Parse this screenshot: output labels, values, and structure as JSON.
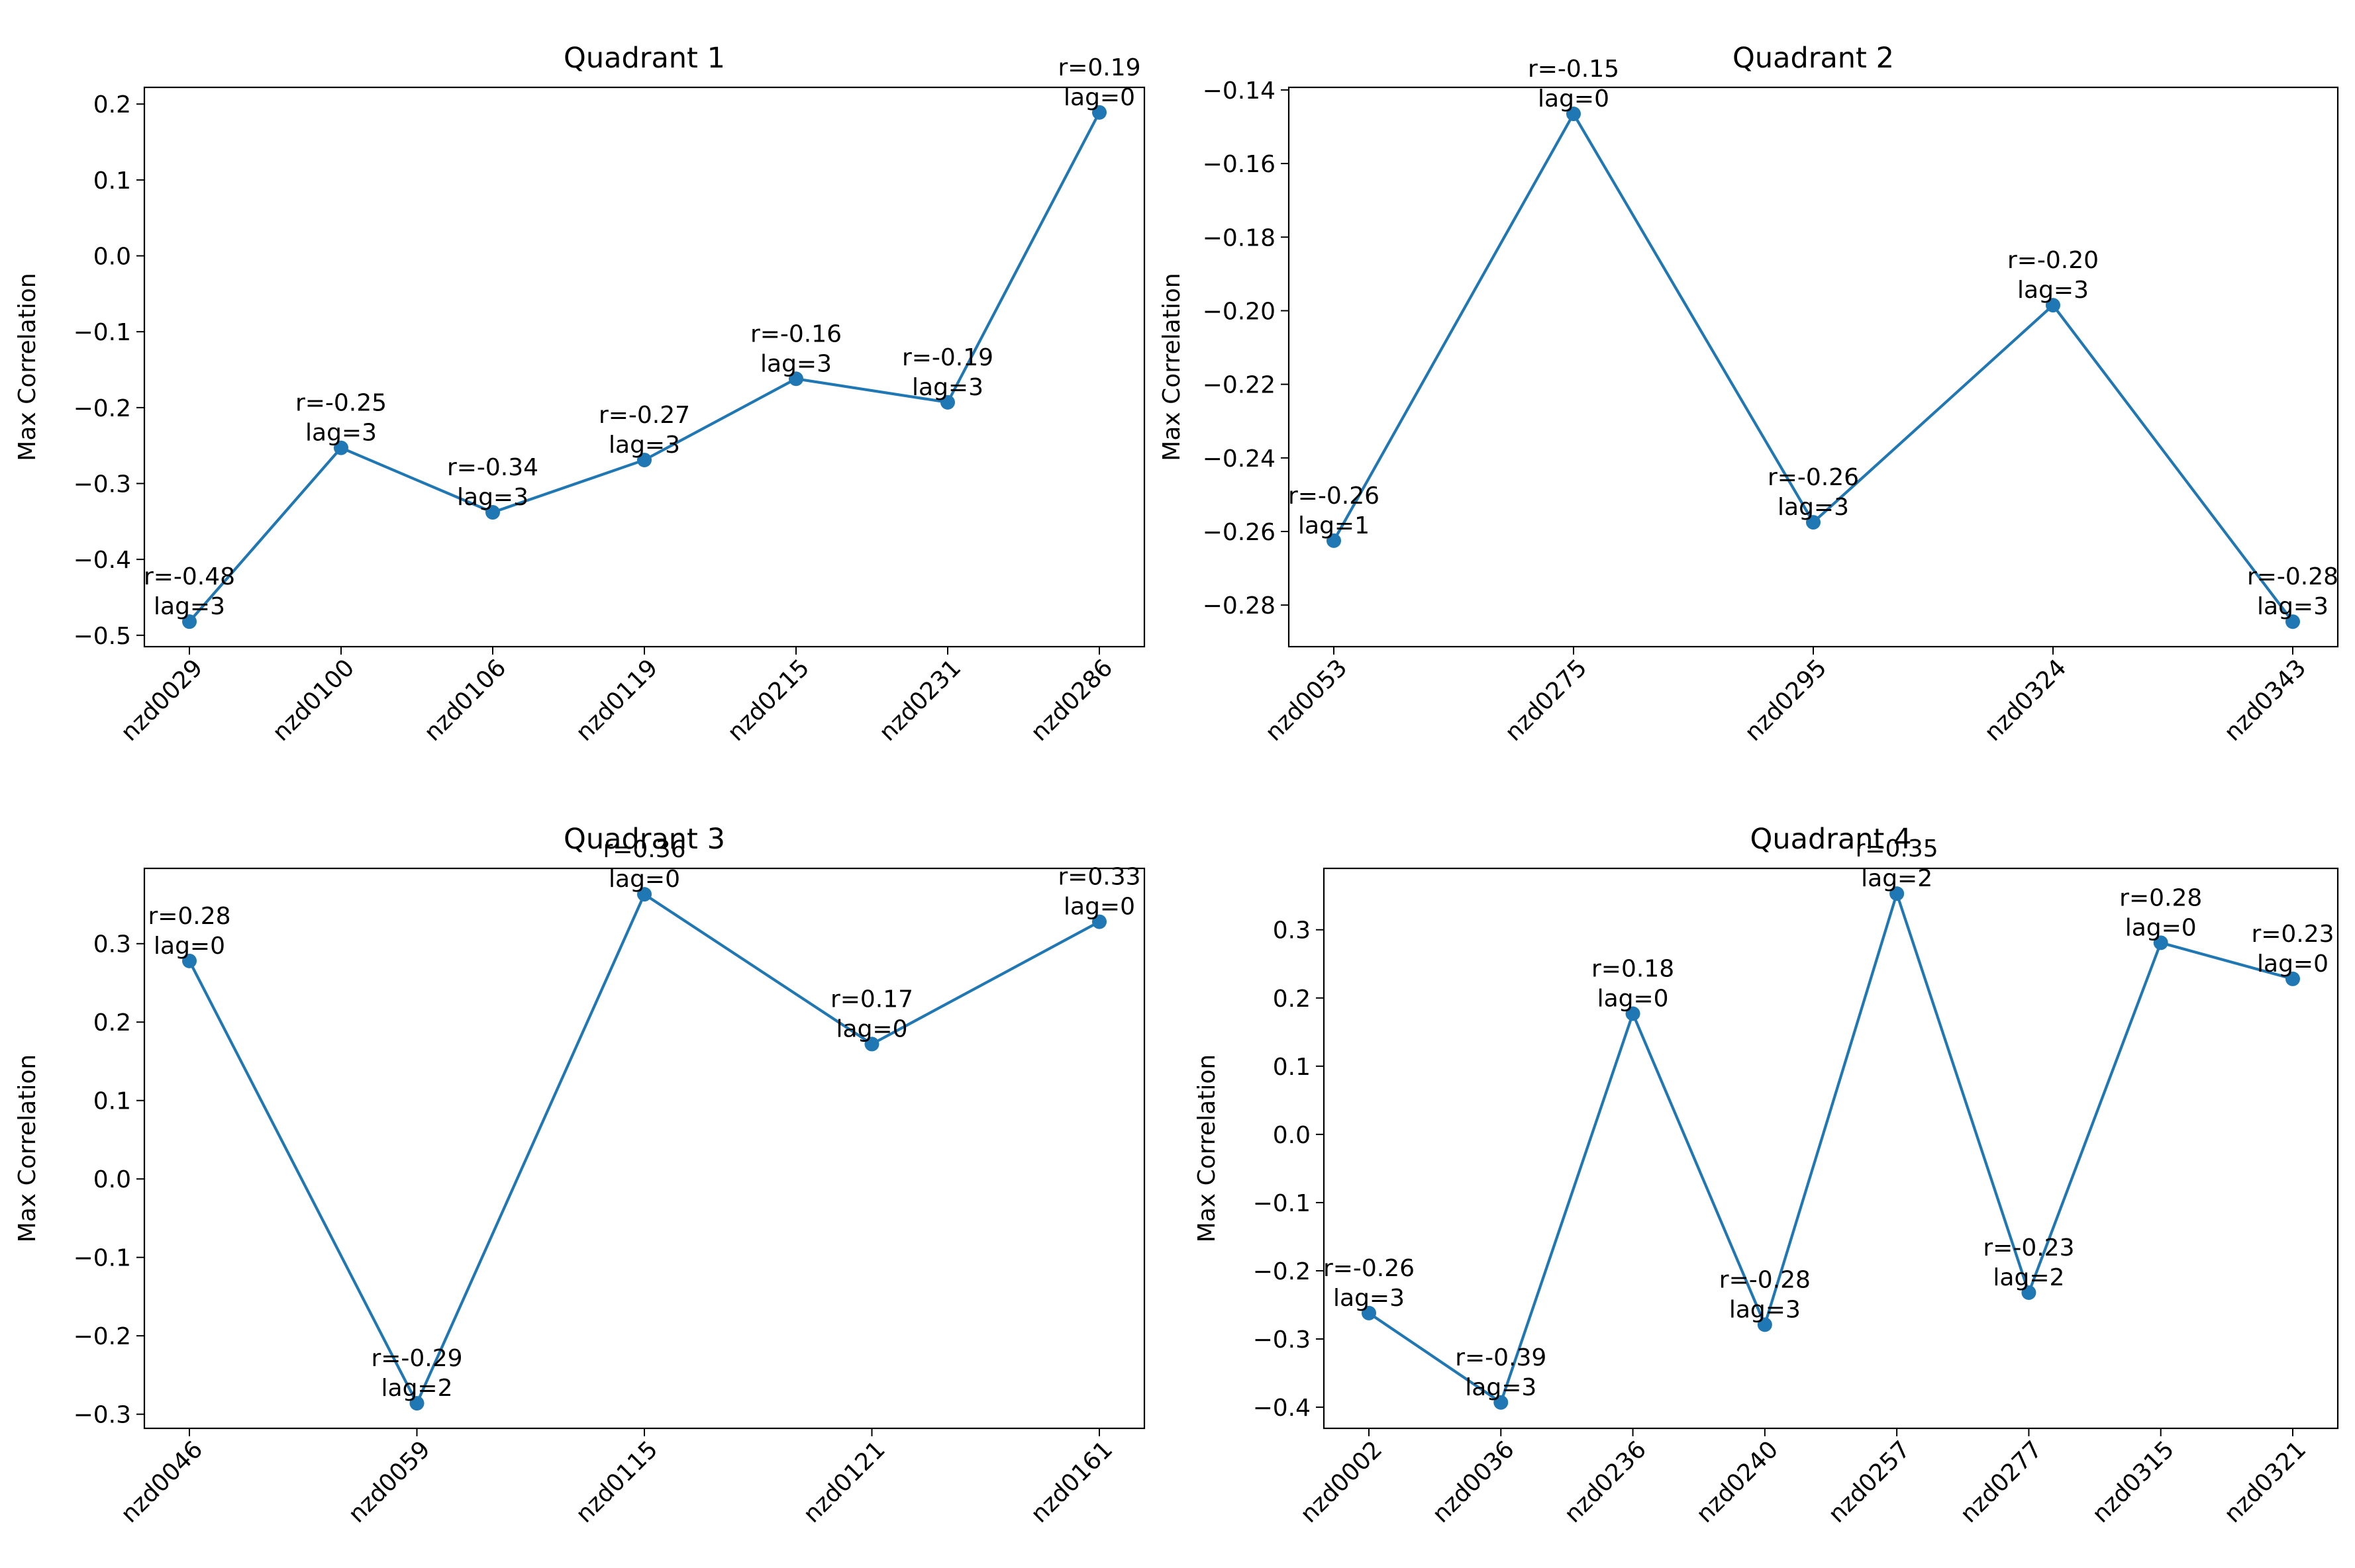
{
  "chart_data": [
    {
      "type": "line",
      "title": "Quadrant 1",
      "xlabel": "",
      "ylabel": "Max Correlation",
      "ylim": [
        -0.515,
        0.222
      ],
      "yticks": [
        -0.5,
        -0.4,
        -0.3,
        -0.2,
        -0.1,
        0.0,
        0.1,
        0.2
      ],
      "yticklabels": [
        "−0.5",
        "−0.4",
        "−0.3",
        "−0.2",
        "−0.1",
        "0.0",
        "0.1",
        "0.2"
      ],
      "categories": [
        "nzd0029",
        "nzd0100",
        "nzd0106",
        "nzd0119",
        "nzd0215",
        "nzd0231",
        "nzd0286"
      ],
      "values": [
        -0.482,
        -0.253,
        -0.338,
        -0.269,
        -0.162,
        -0.193,
        0.189
      ],
      "annotations": [
        "r=-0.48\nlag=3",
        "r=-0.25\nlag=3",
        "r=-0.34\nlag=3",
        "r=-0.27\nlag=3",
        "r=-0.16\nlag=3",
        "r=-0.19\nlag=3",
        "r=0.19\nlag=0"
      ],
      "color": "#1f77b4",
      "grid": false
    },
    {
      "type": "line",
      "title": "Quadrant 2",
      "xlabel": "",
      "ylabel": "Max Correlation",
      "ylim": [
        -0.2913,
        -0.1393
      ],
      "yticks": [
        -0.28,
        -0.26,
        -0.24,
        -0.22,
        -0.2,
        -0.18,
        -0.16,
        -0.14
      ],
      "yticklabels": [
        "−0.28",
        "−0.26",
        "−0.24",
        "−0.22",
        "−0.20",
        "−0.18",
        "−0.16",
        "−0.14"
      ],
      "categories": [
        "nzd0053",
        "nzd0275",
        "nzd0295",
        "nzd0324",
        "nzd0343"
      ],
      "values": [
        -0.2625,
        -0.1465,
        -0.2575,
        -0.1985,
        -0.2845
      ],
      "annotations": [
        "r=-0.26\nlag=1",
        "r=-0.15\nlag=0",
        "r=-0.26\nlag=3",
        "r=-0.20\nlag=3",
        "r=-0.28\nlag=3"
      ],
      "color": "#1f77b4",
      "grid": false
    },
    {
      "type": "line",
      "title": "Quadrant 3",
      "xlabel": "",
      "ylabel": "Max Correlation",
      "ylim": [
        -0.318,
        0.396
      ],
      "yticks": [
        -0.3,
        -0.2,
        -0.1,
        0.0,
        0.1,
        0.2,
        0.3
      ],
      "yticklabels": [
        "−0.3",
        "−0.2",
        "−0.1",
        "0.0",
        "0.1",
        "0.2",
        "0.3"
      ],
      "categories": [
        "nzd0046",
        "nzd0059",
        "nzd0115",
        "nzd0121",
        "nzd0161"
      ],
      "values": [
        0.278,
        -0.286,
        0.363,
        0.172,
        0.328
      ],
      "annotations": [
        "r=0.28\nlag=0",
        "r=-0.29\nlag=2",
        "r=0.36\nlag=0",
        "r=0.17\nlag=0",
        "r=0.33\nlag=0"
      ],
      "color": "#1f77b4",
      "grid": false
    },
    {
      "type": "line",
      "title": "Quadrant 4",
      "xlabel": "",
      "ylabel": "Max Correlation",
      "ylim": [
        -0.431,
        0.39
      ],
      "yticks": [
        -0.4,
        -0.3,
        -0.2,
        -0.1,
        0.0,
        0.1,
        0.2,
        0.3
      ],
      "yticklabels": [
        "−0.4",
        "−0.3",
        "−0.2",
        "−0.1",
        "0.0",
        "0.1",
        "0.2",
        "0.3"
      ],
      "categories": [
        "nzd0002",
        "nzd0036",
        "nzd0236",
        "nzd0240",
        "nzd0257",
        "nzd0277",
        "nzd0315",
        "nzd0321"
      ],
      "values": [
        -0.262,
        -0.393,
        0.177,
        -0.279,
        0.353,
        -0.232,
        0.281,
        0.228
      ],
      "annotations": [
        "r=-0.26\nlag=3",
        "r=-0.39\nlag=3",
        "r=0.18\nlag=0",
        "r=-0.28\nlag=3",
        "r=0.35\nlag=2",
        "r=-0.23\nlag=2",
        "r=0.28\nlag=0",
        "r=0.23\nlag=0"
      ],
      "color": "#1f77b4",
      "grid": false
    }
  ]
}
